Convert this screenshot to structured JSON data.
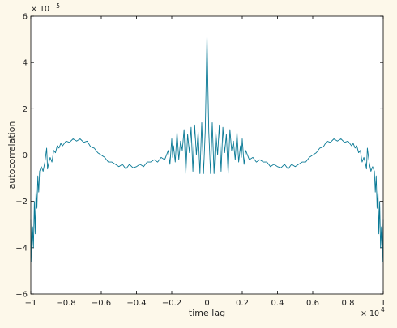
{
  "chart_data": {
    "type": "line",
    "title": "",
    "xlabel": "time lag",
    "ylabel": "autocorrelation",
    "x_exponent_label": "× 10",
    "x_exponent_power": "4",
    "y_exponent_label": "× 10",
    "y_exponent_power": "−5",
    "xlim": [
      -10000,
      10000
    ],
    "ylim": [
      -6e-05,
      6e-05
    ],
    "x_ticks": [
      -10000,
      -8000,
      -6000,
      -4000,
      -2000,
      0,
      2000,
      4000,
      6000,
      8000,
      10000
    ],
    "x_tick_labels": [
      "−1",
      "−0.8",
      "−0.6",
      "−0.4",
      "−0.2",
      "0",
      "0.2",
      "0.4",
      "0.6",
      "0.8",
      "1"
    ],
    "y_ticks": [
      -6e-05,
      -4e-05,
      -2e-05,
      0,
      2e-05,
      4e-05,
      6e-05
    ],
    "y_tick_labels": [
      "−6",
      "−4",
      "−2",
      "0",
      "2",
      "4",
      "6"
    ],
    "grid": false,
    "legend": "none",
    "line_color": "#0b7a96",
    "series": [
      {
        "points": [
          [
            -10000,
            -2.8e-05
          ],
          [
            -9950,
            -4.6e-05
          ],
          [
            -9900,
            -3.1e-05
          ],
          [
            -9850,
            -4e-05
          ],
          [
            -9800,
            -2e-05
          ],
          [
            -9750,
            -3.4e-05
          ],
          [
            -9700,
            -1.5e-05
          ],
          [
            -9650,
            -2.3e-05
          ],
          [
            -9600,
            -9e-06
          ],
          [
            -9550,
            -1.6e-05
          ],
          [
            -9500,
            -7e-06
          ],
          [
            -9400,
            -5e-06
          ],
          [
            -9300,
            -7e-06
          ],
          [
            -9200,
            -3e-06
          ],
          [
            -9100,
            3e-06
          ],
          [
            -9050,
            -6e-06
          ],
          [
            -9000,
            -4e-06
          ],
          [
            -8900,
            -1e-06
          ],
          [
            -8800,
            -3e-06
          ],
          [
            -8700,
            2e-06
          ],
          [
            -8600,
            1e-06
          ],
          [
            -8500,
            4e-06
          ],
          [
            -8400,
            3e-06
          ],
          [
            -8300,
            5e-06
          ],
          [
            -8200,
            4e-06
          ],
          [
            -8000,
            6e-06
          ],
          [
            -7800,
            5.5e-06
          ],
          [
            -7600,
            7e-06
          ],
          [
            -7400,
            6e-06
          ],
          [
            -7200,
            7e-06
          ],
          [
            -7000,
            5.5e-06
          ],
          [
            -6800,
            6e-06
          ],
          [
            -6600,
            3.5e-06
          ],
          [
            -6400,
            3e-06
          ],
          [
            -6200,
            1e-06
          ],
          [
            -6000,
            0.0
          ],
          [
            -5800,
            -1e-06
          ],
          [
            -5600,
            -3e-06
          ],
          [
            -5400,
            -3e-06
          ],
          [
            -5200,
            -4e-06
          ],
          [
            -5000,
            -5e-06
          ],
          [
            -4800,
            -4e-06
          ],
          [
            -4600,
            -6e-06
          ],
          [
            -4400,
            -4e-06
          ],
          [
            -4200,
            -5.5e-06
          ],
          [
            -4000,
            -5e-06
          ],
          [
            -3800,
            -4e-06
          ],
          [
            -3600,
            -5e-06
          ],
          [
            -3400,
            -3e-06
          ],
          [
            -3200,
            -3e-06
          ],
          [
            -3000,
            -2e-06
          ],
          [
            -2800,
            -3e-06
          ],
          [
            -2600,
            -1e-06
          ],
          [
            -2400,
            -2e-06
          ],
          [
            -2200,
            2e-06
          ],
          [
            -2100,
            -4e-06
          ],
          [
            -2000,
            7e-06
          ],
          [
            -1950,
            -1e-06
          ],
          [
            -1900,
            4e-06
          ],
          [
            -1800,
            -3e-06
          ],
          [
            -1700,
            1e-05
          ],
          [
            -1600,
            -2e-06
          ],
          [
            -1500,
            6e-06
          ],
          [
            -1400,
            2e-06
          ],
          [
            -1300,
            1.1e-05
          ],
          [
            -1200,
            -8e-06
          ],
          [
            -1100,
            9e-06
          ],
          [
            -1000,
            1e-06
          ],
          [
            -900,
            1.2e-05
          ],
          [
            -800,
            -7e-06
          ],
          [
            -700,
            1.3e-05
          ],
          [
            -600,
            0.0
          ],
          [
            -500,
            1e-05
          ],
          [
            -400,
            -8e-06
          ],
          [
            -300,
            1.4e-05
          ],
          [
            -200,
            -8e-06
          ],
          [
            -100,
            1e-05
          ],
          [
            -50,
            3e-05
          ],
          [
            0,
            5.2e-05
          ],
          [
            50,
            3e-05
          ],
          [
            100,
            1e-05
          ],
          [
            200,
            -8e-06
          ],
          [
            300,
            1.4e-05
          ],
          [
            400,
            -8e-06
          ],
          [
            500,
            1e-05
          ],
          [
            600,
            0.0
          ],
          [
            700,
            1.3e-05
          ],
          [
            800,
            -7e-06
          ],
          [
            900,
            1.2e-05
          ],
          [
            1000,
            1e-06
          ],
          [
            1100,
            9e-06
          ],
          [
            1200,
            -8e-06
          ],
          [
            1300,
            1.1e-05
          ],
          [
            1400,
            2e-06
          ],
          [
            1500,
            6e-06
          ],
          [
            1600,
            -2e-06
          ],
          [
            1700,
            1e-05
          ],
          [
            1800,
            -3e-06
          ],
          [
            1900,
            4e-06
          ],
          [
            1950,
            -1e-06
          ],
          [
            2000,
            7e-06
          ],
          [
            2100,
            -4e-06
          ],
          [
            2200,
            2e-06
          ],
          [
            2400,
            -2e-06
          ],
          [
            2600,
            -1e-06
          ],
          [
            2800,
            -3e-06
          ],
          [
            3000,
            -2e-06
          ],
          [
            3200,
            -3e-06
          ],
          [
            3400,
            -3e-06
          ],
          [
            3600,
            -5e-06
          ],
          [
            3800,
            -4e-06
          ],
          [
            4000,
            -5e-06
          ],
          [
            4200,
            -5.5e-06
          ],
          [
            4400,
            -4e-06
          ],
          [
            4600,
            -6e-06
          ],
          [
            4800,
            -4e-06
          ],
          [
            5000,
            -5e-06
          ],
          [
            5200,
            -4e-06
          ],
          [
            5400,
            -3e-06
          ],
          [
            5600,
            -3e-06
          ],
          [
            5800,
            -1e-06
          ],
          [
            6000,
            0.0
          ],
          [
            6200,
            1e-06
          ],
          [
            6400,
            3e-06
          ],
          [
            6600,
            3.5e-06
          ],
          [
            6800,
            6e-06
          ],
          [
            7000,
            5.5e-06
          ],
          [
            7200,
            7e-06
          ],
          [
            7400,
            6e-06
          ],
          [
            7600,
            7e-06
          ],
          [
            7800,
            5.5e-06
          ],
          [
            8000,
            6e-06
          ],
          [
            8200,
            4e-06
          ],
          [
            8300,
            5e-06
          ],
          [
            8400,
            3e-06
          ],
          [
            8500,
            4e-06
          ],
          [
            8600,
            1e-06
          ],
          [
            8700,
            2e-06
          ],
          [
            8800,
            -3e-06
          ],
          [
            8900,
            -1e-06
          ],
          [
            9000,
            -4e-06
          ],
          [
            9050,
            -6e-06
          ],
          [
            9100,
            3e-06
          ],
          [
            9200,
            -3e-06
          ],
          [
            9300,
            -7e-06
          ],
          [
            9400,
            -5e-06
          ],
          [
            9500,
            -7e-06
          ],
          [
            9550,
            -1.6e-05
          ],
          [
            9600,
            -9e-06
          ],
          [
            9650,
            -2.3e-05
          ],
          [
            9700,
            -1.5e-05
          ],
          [
            9750,
            -3.4e-05
          ],
          [
            9800,
            -2e-05
          ],
          [
            9850,
            -4e-05
          ],
          [
            9900,
            -3.1e-05
          ],
          [
            9950,
            -4.6e-05
          ],
          [
            10000,
            -2.8e-05
          ]
        ]
      }
    ]
  }
}
